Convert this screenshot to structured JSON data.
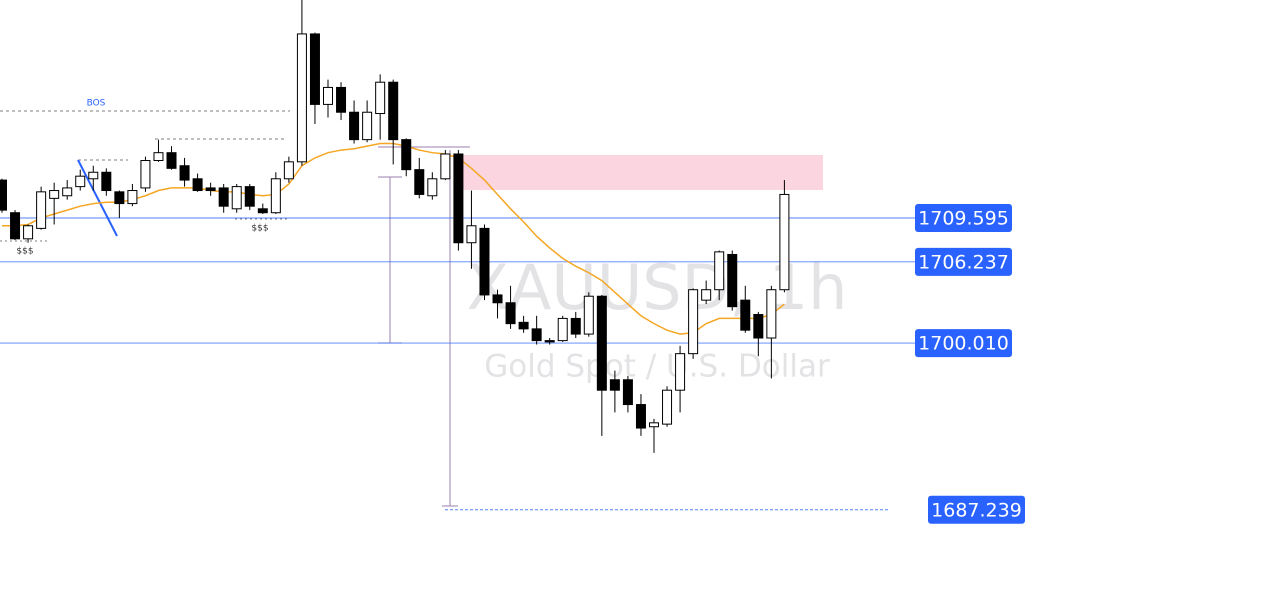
{
  "chart_data": {
    "type": "candlestick",
    "title": "XAUUSD, 1h",
    "subtitle": "Gold Spot / U.S. Dollar",
    "annotations": [
      "BOS",
      "$$$",
      "$$$"
    ],
    "ylim": [
      1680.4,
      1726.3
    ],
    "up_color": "#ffffff",
    "down_color": "#000000",
    "level_color": "#2962ff",
    "ma_color": "#f5a623",
    "open": [
      1712.5,
      1710.0,
      1708.0,
      1708.8,
      1711.1,
      1711.3,
      1712.0,
      1712.6,
      1713.1,
      1711.6,
      1710.7,
      1711.9,
      1714.0,
      1714.6,
      1713.6,
      1712.6,
      1711.9,
      1711.9,
      1710.3,
      1712.0,
      1710.3,
      1710.0,
      1712.6,
      1713.9,
      1723.7,
      1718.3,
      1719.6,
      1717.7,
      1715.6,
      1717.6,
      1720.0,
      1715.6,
      1713.3,
      1711.3,
      1712.6,
      1714.5,
      1707.7,
      1708.8,
      1703.7,
      1703.1,
      1701.6,
      1701.1,
      1700.2,
      1700.2,
      1701.9,
      1700.7,
      1703.6,
      1697.2,
      1697.2,
      1695.3,
      1693.6,
      1693.8,
      1696.4,
      1699.2,
      1703.3,
      1704.1,
      1706.8,
      1703.3,
      1702.2,
      1700.4,
      1704.1
    ],
    "high": [
      1712.6,
      1710.2,
      1709.1,
      1712.0,
      1712.3,
      1712.5,
      1713.3,
      1713.6,
      1713.4,
      1711.7,
      1712.2,
      1714.3,
      1715.6,
      1715.1,
      1714.2,
      1713.0,
      1712.3,
      1712.2,
      1712.2,
      1712.2,
      1710.7,
      1713.1,
      1714.3,
      1726.3,
      1723.8,
      1720.2,
      1720.0,
      1718.6,
      1718.6,
      1720.6,
      1720.2,
      1715.7,
      1714.2,
      1713.1,
      1714.8,
      1714.8,
      1711.7,
      1709.1,
      1704.1,
      1704.4,
      1702.1,
      1702.1,
      1700.4,
      1702.1,
      1702.4,
      1703.9,
      1703.7,
      1697.9,
      1697.5,
      1696.1,
      1694.2,
      1696.7,
      1699.8,
      1704.2,
      1704.8,
      1707.1,
      1707.1,
      1704.4,
      1702.4,
      1704.4,
      1712.5
    ],
    "low": [
      1710.0,
      1707.9,
      1707.7,
      1708.7,
      1709.1,
      1711.0,
      1711.7,
      1711.7,
      1711.3,
      1709.6,
      1710.5,
      1711.6,
      1713.9,
      1713.3,
      1712.0,
      1711.6,
      1711.3,
      1710.0,
      1710.0,
      1710.2,
      1709.9,
      1709.9,
      1712.3,
      1713.6,
      1716.8,
      1717.3,
      1717.1,
      1715.3,
      1715.4,
      1715.6,
      1713.7,
      1712.8,
      1711.1,
      1711.0,
      1712.5,
      1707.1,
      1705.7,
      1703.3,
      1701.9,
      1701.1,
      1700.8,
      1699.9,
      1699.9,
      1700.1,
      1700.4,
      1700.5,
      1692.9,
      1694.7,
      1694.7,
      1692.9,
      1691.6,
      1693.6,
      1694.7,
      1698.8,
      1703.0,
      1703.3,
      1702.5,
      1700.8,
      1699.0,
      1697.3,
      1703.9
    ],
    "close": [
      1710.2,
      1708.0,
      1709.0,
      1711.6,
      1711.7,
      1711.9,
      1712.8,
      1713.1,
      1711.7,
      1710.7,
      1711.7,
      1714.0,
      1714.6,
      1713.4,
      1712.5,
      1711.7,
      1711.7,
      1710.5,
      1712.0,
      1710.5,
      1710.0,
      1712.6,
      1713.9,
      1723.7,
      1718.3,
      1719.6,
      1717.7,
      1715.6,
      1717.7,
      1720.0,
      1715.6,
      1713.3,
      1711.4,
      1712.6,
      1714.5,
      1707.7,
      1709.0,
      1703.7,
      1703.1,
      1701.5,
      1701.1,
      1700.2,
      1700.1,
      1701.9,
      1700.7,
      1703.6,
      1696.4,
      1696.4,
      1695.3,
      1693.5,
      1693.9,
      1696.4,
      1699.2,
      1704.1,
      1704.1,
      1707.0,
      1702.8,
      1701.0,
      1700.4,
      1704.1,
      1711.4
    ],
    "ma": [
      1709.0,
      1709.0,
      1709.1,
      1709.6,
      1709.9,
      1710.2,
      1710.5,
      1710.7,
      1710.8,
      1710.8,
      1711.0,
      1711.3,
      1711.7,
      1711.9,
      1711.9,
      1711.9,
      1711.7,
      1711.6,
      1711.6,
      1711.4,
      1711.3,
      1711.4,
      1712.2,
      1713.6,
      1714.2,
      1714.6,
      1714.8,
      1714.9,
      1715.1,
      1715.3,
      1715.3,
      1715.1,
      1714.8,
      1714.6,
      1714.5,
      1714.2,
      1713.4,
      1712.5,
      1711.4,
      1710.3,
      1709.3,
      1708.2,
      1707.3,
      1706.5,
      1705.9,
      1705.4,
      1704.8,
      1703.9,
      1703.0,
      1702.1,
      1701.5,
      1701.0,
      1700.7,
      1700.8,
      1701.5,
      1701.9,
      1701.9,
      1701.9,
      1701.9,
      1702.2,
      1703.0
    ],
    "levels": [
      1709.595,
      1706.237,
      {
        "value": 1700.01,
        "label": "1700.010"
      },
      1687.239
    ]
  }
}
